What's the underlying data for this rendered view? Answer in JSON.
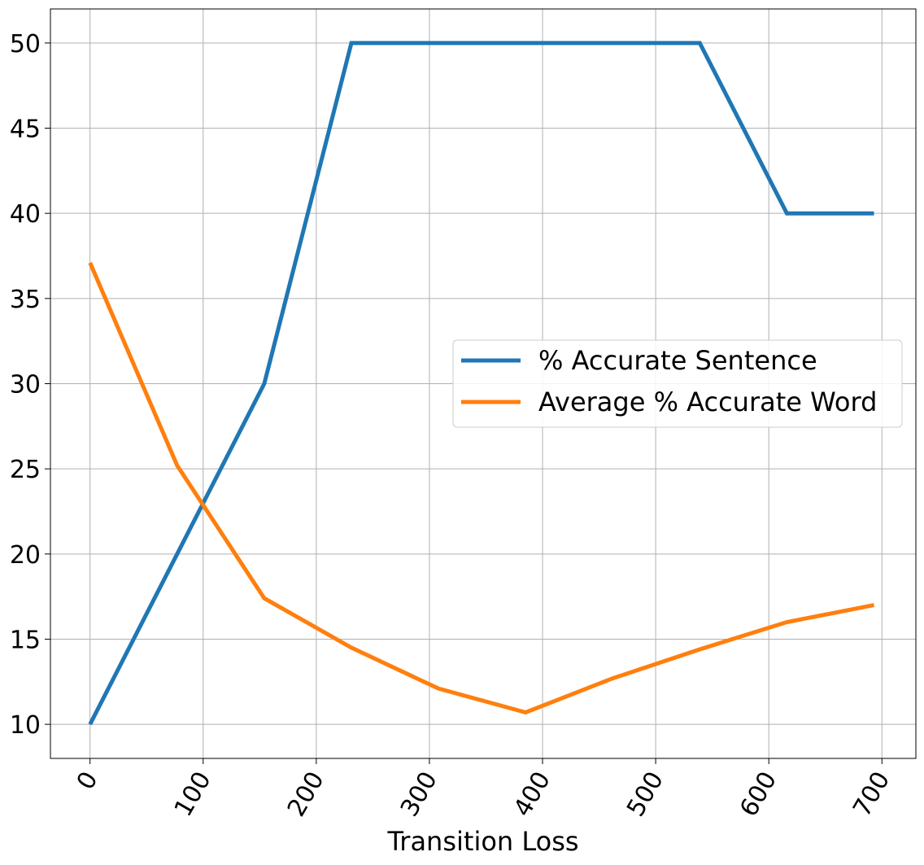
{
  "chart_data": {
    "type": "line",
    "title": "",
    "xlabel": "Transition Loss",
    "ylabel": "",
    "xlim": [
      -35,
      730
    ],
    "ylim": [
      8,
      52
    ],
    "xticks": [
      0,
      100,
      200,
      300,
      400,
      500,
      600,
      700
    ],
    "xtick_labels": [
      "0",
      "100",
      "200",
      "300",
      "400",
      "500",
      "600",
      "700"
    ],
    "yticks": [
      10,
      15,
      20,
      25,
      30,
      35,
      40,
      45,
      50
    ],
    "ytick_labels": [
      "10",
      "15",
      "20",
      "25",
      "30",
      "35",
      "40",
      "45",
      "50"
    ],
    "grid": true,
    "legend_position": "center-right",
    "series": [
      {
        "name": "% Accurate Sentence",
        "color": "#1f77b4",
        "x": [
          0,
          77,
          154,
          231,
          308,
          385,
          462,
          539,
          616,
          693
        ],
        "y": [
          10,
          20,
          30,
          50,
          50,
          50,
          50,
          50,
          40,
          40
        ]
      },
      {
        "name": "Average % Accurate Word",
        "color": "#ff7f0e",
        "x": [
          0,
          77,
          154,
          231,
          308,
          385,
          462,
          539,
          616,
          693
        ],
        "y": [
          37.1,
          25.2,
          17.4,
          14.5,
          12.1,
          10.7,
          12.7,
          14.4,
          16.0,
          17.0
        ]
      }
    ]
  }
}
